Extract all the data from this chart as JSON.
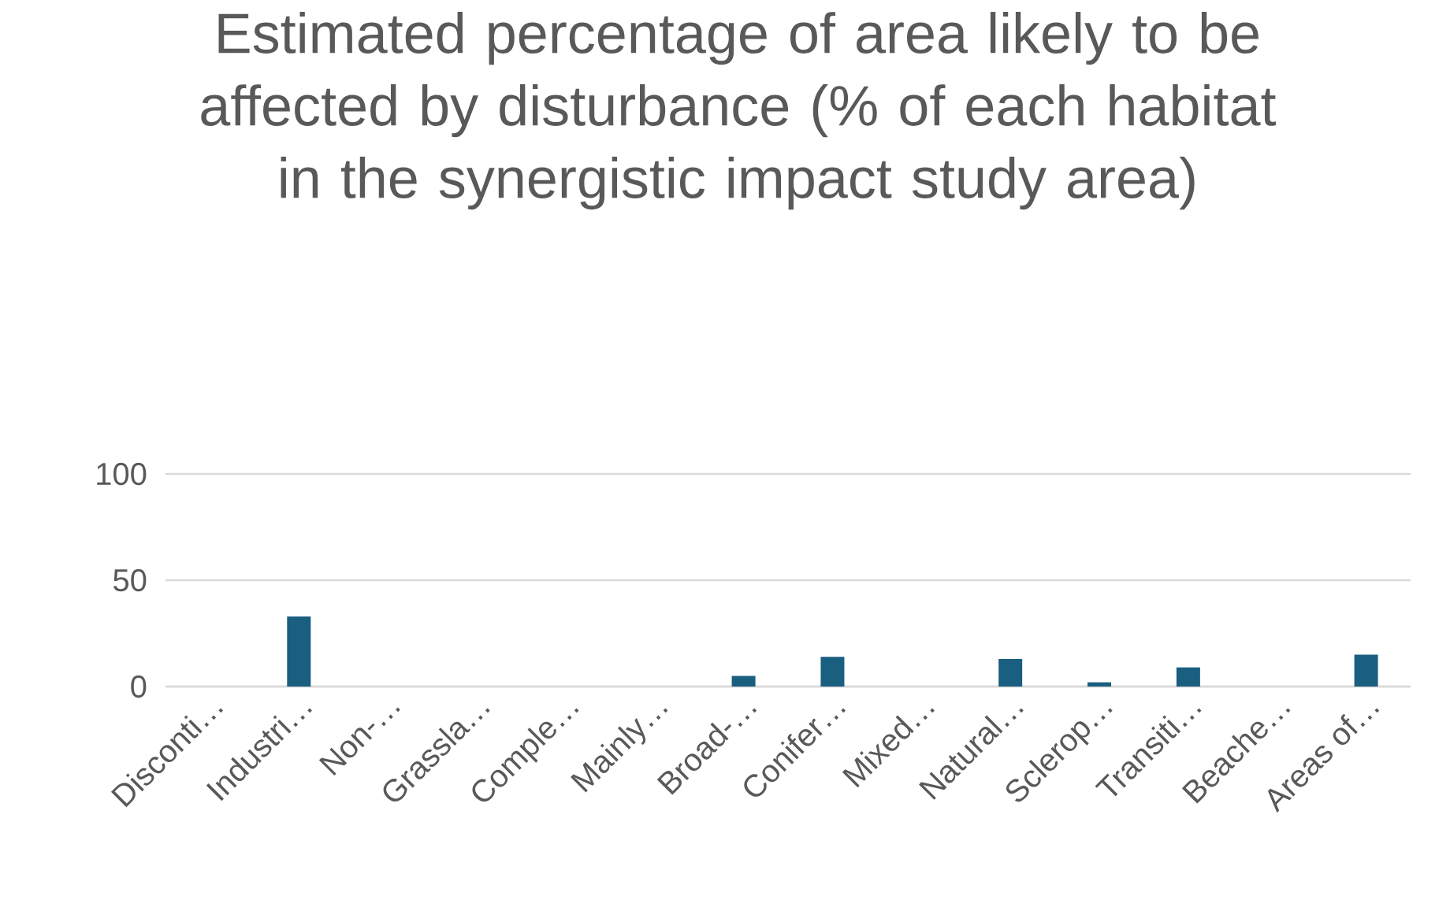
{
  "chart_data": {
    "type": "bar",
    "title": "Estimated percentage of area likely to be affected by disturbance (% of each habitat in the synergistic impact study area)",
    "categories": [
      "Disconti…",
      "Industri…",
      "Non-…",
      "Grassla…",
      "Comple…",
      "Mainly…",
      "Broad-…",
      "Conifer…",
      "Mixed…",
      "Natural…",
      "Sclerop…",
      "Transiti…",
      "Beache…",
      "Areas of…"
    ],
    "values": [
      0,
      33,
      0,
      0,
      0,
      0,
      5,
      14,
      0,
      13,
      2,
      9,
      0,
      15
    ],
    "color": "#1a5e80",
    "ylim": [
      0,
      100
    ],
    "yticks": [
      0,
      50,
      100
    ],
    "grid": "y"
  }
}
